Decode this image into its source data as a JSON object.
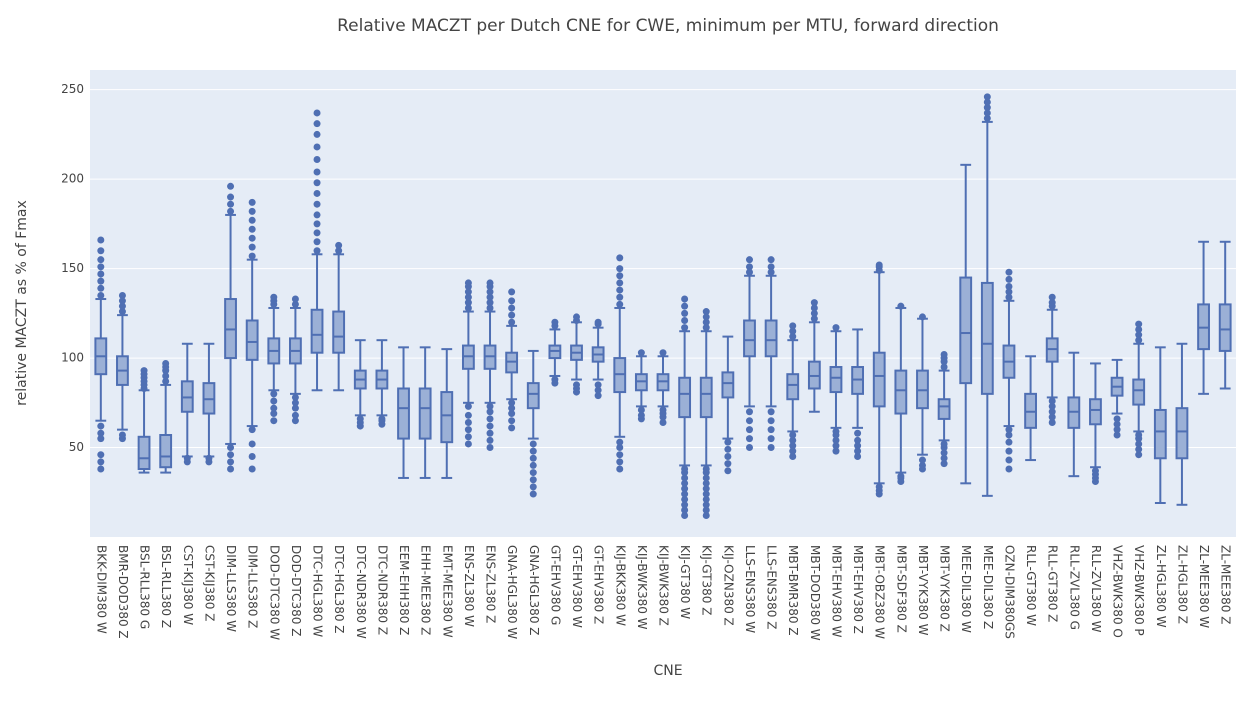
{
  "chart_data": {
    "type": "box",
    "title": "Relative MACZT per Dutch CNE for CWE, minimum per MTU, forward direction",
    "x_label": "CNE",
    "y_label": "relative MACZT as % of Fmax",
    "color": "#4f6fb3",
    "fill": "#9bb0d6",
    "grid": true,
    "ylim": [
      0,
      261
    ],
    "yticks": [
      50,
      100,
      150,
      200,
      250
    ],
    "categories": [
      "BKK-DIM380 W",
      "BMR-DOD380 Z",
      "BSL-RLL380 G",
      "BSL-RLL380 Z",
      "CST-KIJ380 W",
      "CST-KIJ380 Z",
      "DIM-LLS380 W",
      "DIM-LLS380 Z",
      "DOD-DTC380 W",
      "DOD-DTC380 Z",
      "DTC-HGL380 W",
      "DTC-HGL380 Z",
      "DTC-NDR380 W",
      "DTC-NDR380 Z",
      "EEM-EHH380 Z",
      "EHH-MEE380 Z",
      "EMT-MEE380 W",
      "ENS-ZL380 W",
      "ENS-ZL380 Z",
      "GNA-HGL380 W",
      "GNA-HGL380 Z",
      "GT-EHV380 G",
      "GT-EHV380 W",
      "GT-EHV380 Z",
      "KIJ-BKK380 W",
      "KIJ-BWK380 W",
      "KIJ-BWK380 Z",
      "KIJ-GT380 W",
      "KIJ-GT380 Z",
      "KIJ-OZN380 Z",
      "LLS-ENS380 W",
      "LLS-ENS380 Z",
      "MBT-BMR380 Z",
      "MBT-DOD380 W",
      "MBT-EHV380 W",
      "MBT-EHV380 Z",
      "MBT-OBZ380 W",
      "MBT-SDF380 Z",
      "MBT-VYK380 W",
      "MBT-VYK380 Z",
      "MEE-DIL380 W",
      "MEE-DIL380 Z",
      "OZN-DIM380GS",
      "RLL-GT380 W",
      "RLL-GT380 Z",
      "RLL-ZVL380 G",
      "RLL-ZVL380 W",
      "VHZ-BWK380 O",
      "VHZ-BWK380 P",
      "ZL-HGL380 W",
      "ZL-HGL380 Z",
      "ZL-MEE380 W",
      "ZL-MEE380 Z"
    ],
    "lower_whisker": [
      65,
      60,
      36,
      36,
      45,
      45,
      52,
      62,
      82,
      80,
      82,
      82,
      68,
      68,
      33,
      33,
      33,
      75,
      75,
      77,
      55,
      90,
      88,
      88,
      56,
      73,
      73,
      40,
      40,
      55,
      73,
      73,
      59,
      70,
      61,
      61,
      30,
      36,
      46,
      54,
      30,
      23,
      62,
      43,
      78,
      34,
      39,
      69,
      59,
      19,
      18,
      80,
      83
    ],
    "q1": [
      91,
      85,
      38,
      39,
      70,
      69,
      100,
      99,
      97,
      97,
      103,
      103,
      83,
      83,
      55,
      55,
      53,
      94,
      94,
      92,
      72,
      100,
      99,
      98,
      81,
      82,
      82,
      67,
      67,
      78,
      101,
      101,
      77,
      83,
      81,
      80,
      73,
      69,
      72,
      66,
      86,
      80,
      89,
      61,
      98,
      61,
      63,
      79,
      74,
      44,
      44,
      105,
      104
    ],
    "median": [
      101,
      93,
      44,
      45,
      78,
      77,
      116,
      109,
      104,
      104,
      113,
      112,
      88,
      88,
      72,
      72,
      68,
      101,
      101,
      98,
      80,
      104,
      103,
      102,
      91,
      87,
      87,
      80,
      80,
      86,
      110,
      110,
      85,
      90,
      89,
      88,
      90,
      82,
      82,
      73,
      114,
      108,
      98,
      70,
      105,
      70,
      71,
      84,
      82,
      59,
      59,
      117,
      116
    ],
    "q3": [
      111,
      101,
      56,
      57,
      87,
      86,
      133,
      121,
      111,
      111,
      127,
      126,
      93,
      93,
      83,
      83,
      81,
      107,
      107,
      103,
      86,
      107,
      107,
      106,
      100,
      91,
      91,
      89,
      89,
      92,
      121,
      121,
      91,
      98,
      95,
      95,
      103,
      93,
      93,
      77,
      145,
      142,
      107,
      80,
      111,
      78,
      77,
      89,
      88,
      71,
      72,
      130,
      130
    ],
    "upper_whisker": [
      133,
      124,
      82,
      85,
      108,
      108,
      180,
      155,
      128,
      128,
      158,
      158,
      110,
      110,
      106,
      106,
      105,
      126,
      126,
      118,
      104,
      116,
      120,
      117,
      128,
      101,
      101,
      115,
      115,
      112,
      146,
      146,
      110,
      120,
      115,
      116,
      148,
      128,
      122,
      93,
      208,
      232,
      132,
      101,
      127,
      103,
      97,
      99,
      108,
      106,
      108,
      165,
      165
    ],
    "outliers": [
      [
        38,
        42,
        46,
        55,
        58,
        62,
        135,
        139,
        143,
        147,
        151,
        155,
        160,
        166
      ],
      [
        55,
        57,
        126,
        129,
        132,
        135
      ],
      [
        83,
        85,
        87,
        89,
        91,
        93
      ],
      [
        87,
        90,
        93,
        95,
        97
      ],
      [
        42,
        44
      ],
      [
        42,
        44
      ],
      [
        38,
        42,
        46,
        50,
        182,
        186,
        190,
        196
      ],
      [
        38,
        45,
        52,
        60,
        157,
        162,
        167,
        172,
        177,
        182,
        187
      ],
      [
        65,
        69,
        72,
        76,
        80,
        130,
        132,
        134
      ],
      [
        65,
        68,
        72,
        75,
        78,
        130,
        133
      ],
      [
        160,
        165,
        170,
        175,
        180,
        186,
        192,
        198,
        204,
        211,
        218,
        225,
        231,
        237
      ],
      [
        160,
        163
      ],
      [
        62,
        64,
        66
      ],
      [
        63,
        65,
        66
      ],
      [],
      [],
      [],
      [
        52,
        56,
        60,
        64,
        68,
        73,
        128,
        131,
        134,
        137,
        140,
        142
      ],
      [
        50,
        54,
        58,
        62,
        66,
        70,
        73,
        128,
        131,
        134,
        137,
        140,
        142
      ],
      [
        61,
        65,
        69,
        72,
        75,
        120,
        124,
        128,
        132,
        137
      ],
      [
        24,
        28,
        32,
        36,
        40,
        44,
        48,
        52
      ],
      [
        86,
        88,
        118,
        120
      ],
      [
        81,
        83,
        85,
        121,
        123
      ],
      [
        79,
        82,
        85,
        119,
        120
      ],
      [
        38,
        42,
        46,
        50,
        53,
        130,
        134,
        138,
        142,
        146,
        150,
        156
      ],
      [
        66,
        68,
        71,
        103
      ],
      [
        64,
        67,
        69,
        71,
        103
      ],
      [
        12,
        15,
        18,
        21,
        24,
        27,
        30,
        33,
        36,
        38,
        117,
        121,
        125,
        129,
        133
      ],
      [
        12,
        15,
        18,
        21,
        24,
        27,
        30,
        33,
        36,
        38,
        117,
        120,
        123,
        126
      ],
      [
        37,
        41,
        45,
        49,
        53
      ],
      [
        50,
        55,
        60,
        65,
        70,
        148,
        151,
        155
      ],
      [
        50,
        55,
        60,
        65,
        70,
        148,
        151,
        155
      ],
      [
        45,
        48,
        51,
        54,
        57,
        112,
        115,
        118
      ],
      [
        122,
        125,
        128,
        131
      ],
      [
        48,
        51,
        54,
        57,
        59,
        117
      ],
      [
        45,
        48,
        51,
        54,
        58
      ],
      [
        24,
        26,
        28,
        149,
        151,
        152
      ],
      [
        31,
        33,
        34,
        129
      ],
      [
        38,
        40,
        43,
        123
      ],
      [
        41,
        44,
        47,
        50,
        52,
        95,
        98,
        100,
        102
      ],
      [],
      [
        234,
        237,
        240,
        243,
        246
      ],
      [
        38,
        43,
        48,
        53,
        57,
        60,
        134,
        137,
        140,
        144,
        148
      ],
      [],
      [
        64,
        67,
        70,
        73,
        76,
        129,
        131,
        134
      ],
      [],
      [
        31,
        33,
        35,
        37
      ],
      [
        57,
        60,
        63,
        66
      ],
      [
        46,
        49,
        52,
        55,
        57,
        110,
        113,
        116,
        119
      ],
      [],
      [],
      [],
      []
    ]
  }
}
